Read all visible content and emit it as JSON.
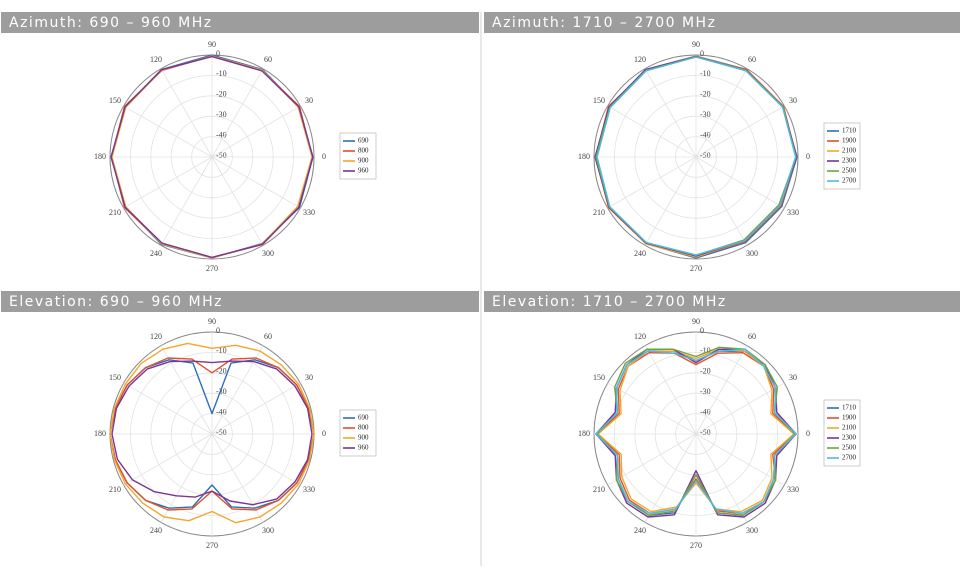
{
  "chart_data": [
    {
      "type": "polar",
      "title": "Azimuth: 690 – 960 MHz",
      "theta": [
        0,
        30,
        60,
        90,
        120,
        150,
        180,
        210,
        240,
        270,
        300,
        330
      ],
      "series": [
        {
          "name": "690",
          "color": "#2f6fb5",
          "values": [
            -0.5,
            -1,
            -0.5,
            0,
            -0.5,
            -1,
            -0.5,
            -1,
            -0.5,
            -0.5,
            -1,
            -0.5
          ]
        },
        {
          "name": "800",
          "color": "#e0522a",
          "values": [
            -0.8,
            -0.5,
            -1,
            -0.5,
            -1,
            -0.5,
            -0.8,
            -0.5,
            -1,
            -0.8,
            -0.5,
            -1
          ]
        },
        {
          "name": "900",
          "color": "#f2a72c",
          "values": [
            -1,
            -1.2,
            -0.8,
            -0.5,
            -0.8,
            -1.2,
            -1,
            -1.2,
            -0.8,
            -0.5,
            -0.8,
            -1.5
          ]
        },
        {
          "name": "960",
          "color": "#7a3596",
          "values": [
            -0.6,
            -0.8,
            -1.2,
            -0.8,
            -0.6,
            -0.8,
            -0.6,
            -0.8,
            -1.2,
            -0.8,
            -0.6,
            -0.8
          ]
        }
      ],
      "rlim": [
        -50,
        0
      ],
      "rticks": [
        0,
        -10,
        -20,
        -30,
        -40,
        -50
      ],
      "thetaticks": [
        0,
        30,
        60,
        90,
        120,
        150,
        180,
        210,
        240,
        270,
        300,
        330
      ]
    },
    {
      "type": "polar",
      "title": "Azimuth: 1710 – 2700 MHz",
      "theta": [
        0,
        30,
        60,
        90,
        120,
        150,
        180,
        210,
        240,
        270,
        300,
        330
      ],
      "series": [
        {
          "name": "1710",
          "color": "#2f6fb5",
          "values": [
            -0.5,
            -1,
            -0.5,
            -0.5,
            -0.5,
            -1,
            -0.5,
            -1,
            -1,
            -0.5,
            -1.5,
            -1.5
          ]
        },
        {
          "name": "1900",
          "color": "#e0522a",
          "values": [
            -0.8,
            -0.5,
            -0.5,
            -1,
            -1,
            -0.5,
            -0.8,
            -0.5,
            -1,
            -1,
            -2,
            -2
          ]
        },
        {
          "name": "2100",
          "color": "#f2a72c",
          "values": [
            -1,
            -1,
            -1,
            -0.5,
            -0.8,
            -1,
            -1,
            -1.2,
            -0.8,
            -1,
            -2.5,
            -2.5
          ]
        },
        {
          "name": "2300",
          "color": "#7a3596",
          "values": [
            -0.6,
            -0.8,
            -1,
            -0.8,
            -0.6,
            -0.8,
            -0.6,
            -0.8,
            -1.2,
            -1.5,
            -2.5,
            -3
          ]
        },
        {
          "name": "2500",
          "color": "#70a33c",
          "values": [
            -1,
            -0.8,
            -1,
            -1,
            -1,
            -1.2,
            -1,
            -1,
            -1.5,
            -1.8,
            -3,
            -3
          ]
        },
        {
          "name": "2700",
          "color": "#4bbbe8",
          "values": [
            -1.2,
            -1,
            -1.2,
            -1,
            -1.2,
            -1.5,
            -1.5,
            -1.2,
            -1.5,
            -2,
            -2.5,
            -2.5
          ]
        }
      ],
      "rlim": [
        -50,
        0
      ],
      "rticks": [
        0,
        -10,
        -20,
        -30,
        -40,
        -50
      ],
      "thetaticks": [
        0,
        30,
        60,
        90,
        120,
        150,
        180,
        210,
        240,
        270,
        300,
        330
      ]
    },
    {
      "type": "polar",
      "title": "Elevation: 690 – 960 MHz",
      "theta": [
        0,
        15,
        30,
        45,
        60,
        75,
        90,
        105,
        120,
        135,
        150,
        165,
        180,
        195,
        210,
        225,
        240,
        255,
        270,
        285,
        300,
        315,
        330,
        345
      ],
      "series": [
        {
          "name": "690",
          "color": "#2f6fb5",
          "values": [
            0,
            -1,
            -2,
            -4,
            -8,
            -14,
            -40,
            -14,
            -8,
            -4,
            -2,
            -1,
            0,
            -1,
            -2,
            -4,
            -8,
            -13,
            -25,
            -13,
            -8,
            -4,
            -2,
            -1
          ]
        },
        {
          "name": "800",
          "color": "#e0522a",
          "values": [
            0,
            -1,
            -2,
            -4,
            -7,
            -12,
            -20,
            -12,
            -7,
            -4,
            -2,
            -1,
            0,
            -1,
            -2,
            -4,
            -7,
            -12,
            -22,
            -12,
            -7,
            -4,
            -2,
            -1
          ]
        },
        {
          "name": "900",
          "color": "#f2a72c",
          "values": [
            0,
            -0.5,
            -1,
            -2,
            -3,
            -5,
            -8,
            -4,
            -2,
            -1,
            -1,
            -0.5,
            0,
            -0.5,
            -1,
            -2,
            -3,
            -6,
            -12,
            -5,
            -3,
            -2,
            -1,
            -0.5
          ]
        },
        {
          "name": "960",
          "color": "#7a3596",
          "values": [
            -1,
            -1.5,
            -3,
            -5,
            -9,
            -13,
            -15,
            -13,
            -9,
            -5,
            -3,
            -1.5,
            -1,
            -2,
            -5,
            -10,
            -15,
            -18,
            -22,
            -16,
            -10,
            -5,
            -3,
            -1.5
          ]
        }
      ],
      "rlim": [
        -50,
        0
      ],
      "rticks": [
        0,
        -10,
        -20,
        -30,
        -40,
        -50
      ],
      "thetaticks": [
        0,
        30,
        60,
        90,
        120,
        150,
        180,
        210,
        240,
        270,
        300,
        330
      ]
    },
    {
      "type": "polar",
      "title": "Elevation: 1710 – 2700 MHz",
      "theta": [
        0,
        15,
        30,
        45,
        60,
        75,
        90,
        105,
        120,
        135,
        150,
        165,
        180,
        195,
        210,
        225,
        240,
        255,
        270,
        285,
        300,
        315,
        330,
        345
      ],
      "series": [
        {
          "name": "1710",
          "color": "#2f6fb5",
          "values": [
            -1,
            -10,
            -5,
            -2,
            -3,
            -8,
            -14,
            -8,
            -3,
            -2,
            -5,
            -10,
            -1,
            -10,
            -6,
            -3,
            -4,
            -10,
            -30,
            -10,
            -4,
            -3,
            -6,
            -10
          ]
        },
        {
          "name": "1900",
          "color": "#e0522a",
          "values": [
            -1.5,
            -11,
            -6,
            -3,
            -4,
            -9,
            -16,
            -9,
            -4,
            -3,
            -6,
            -11,
            -1.5,
            -11,
            -7,
            -4,
            -5,
            -12,
            -28,
            -11,
            -5,
            -3,
            -5,
            -11
          ]
        },
        {
          "name": "2100",
          "color": "#f2a72c",
          "values": [
            -2,
            -12,
            -7,
            -3,
            -3,
            -7,
            -13,
            -8,
            -3,
            -3,
            -7,
            -12,
            -2,
            -12,
            -8,
            -5,
            -6,
            -13,
            -26,
            -12,
            -6,
            -4,
            -7,
            -12
          ]
        },
        {
          "name": "2300",
          "color": "#7a3596",
          "values": [
            -1,
            -9,
            -5,
            -2,
            -2,
            -7,
            -15,
            -7,
            -2,
            -2,
            -5,
            -9,
            -1,
            -9,
            -5,
            -2,
            -3,
            -9,
            -32,
            -9,
            -3,
            -2,
            -5,
            -9
          ]
        },
        {
          "name": "2500",
          "color": "#70a33c",
          "values": [
            -1.5,
            -10,
            -4,
            -2,
            -2,
            -6,
            -12,
            -7,
            -2,
            -1,
            -4,
            -10,
            -1.5,
            -10,
            -5,
            -3,
            -4,
            -11,
            -30,
            -10,
            -4,
            -3,
            -5,
            -10
          ]
        },
        {
          "name": "2700",
          "color": "#4bbbe8",
          "values": [
            -1,
            -10,
            -5,
            -3,
            -2,
            -8,
            -14,
            -9,
            -3,
            -2,
            -5,
            -10,
            -1,
            -10,
            -6,
            -3,
            -5,
            -12,
            -27,
            -12,
            -5,
            -3,
            -6,
            -10
          ]
        }
      ],
      "rlim": [
        -50,
        0
      ],
      "rticks": [
        0,
        -10,
        -20,
        -30,
        -40,
        -50
      ],
      "thetaticks": [
        0,
        30,
        60,
        90,
        120,
        150,
        180,
        210,
        240,
        270,
        300,
        330
      ]
    }
  ]
}
